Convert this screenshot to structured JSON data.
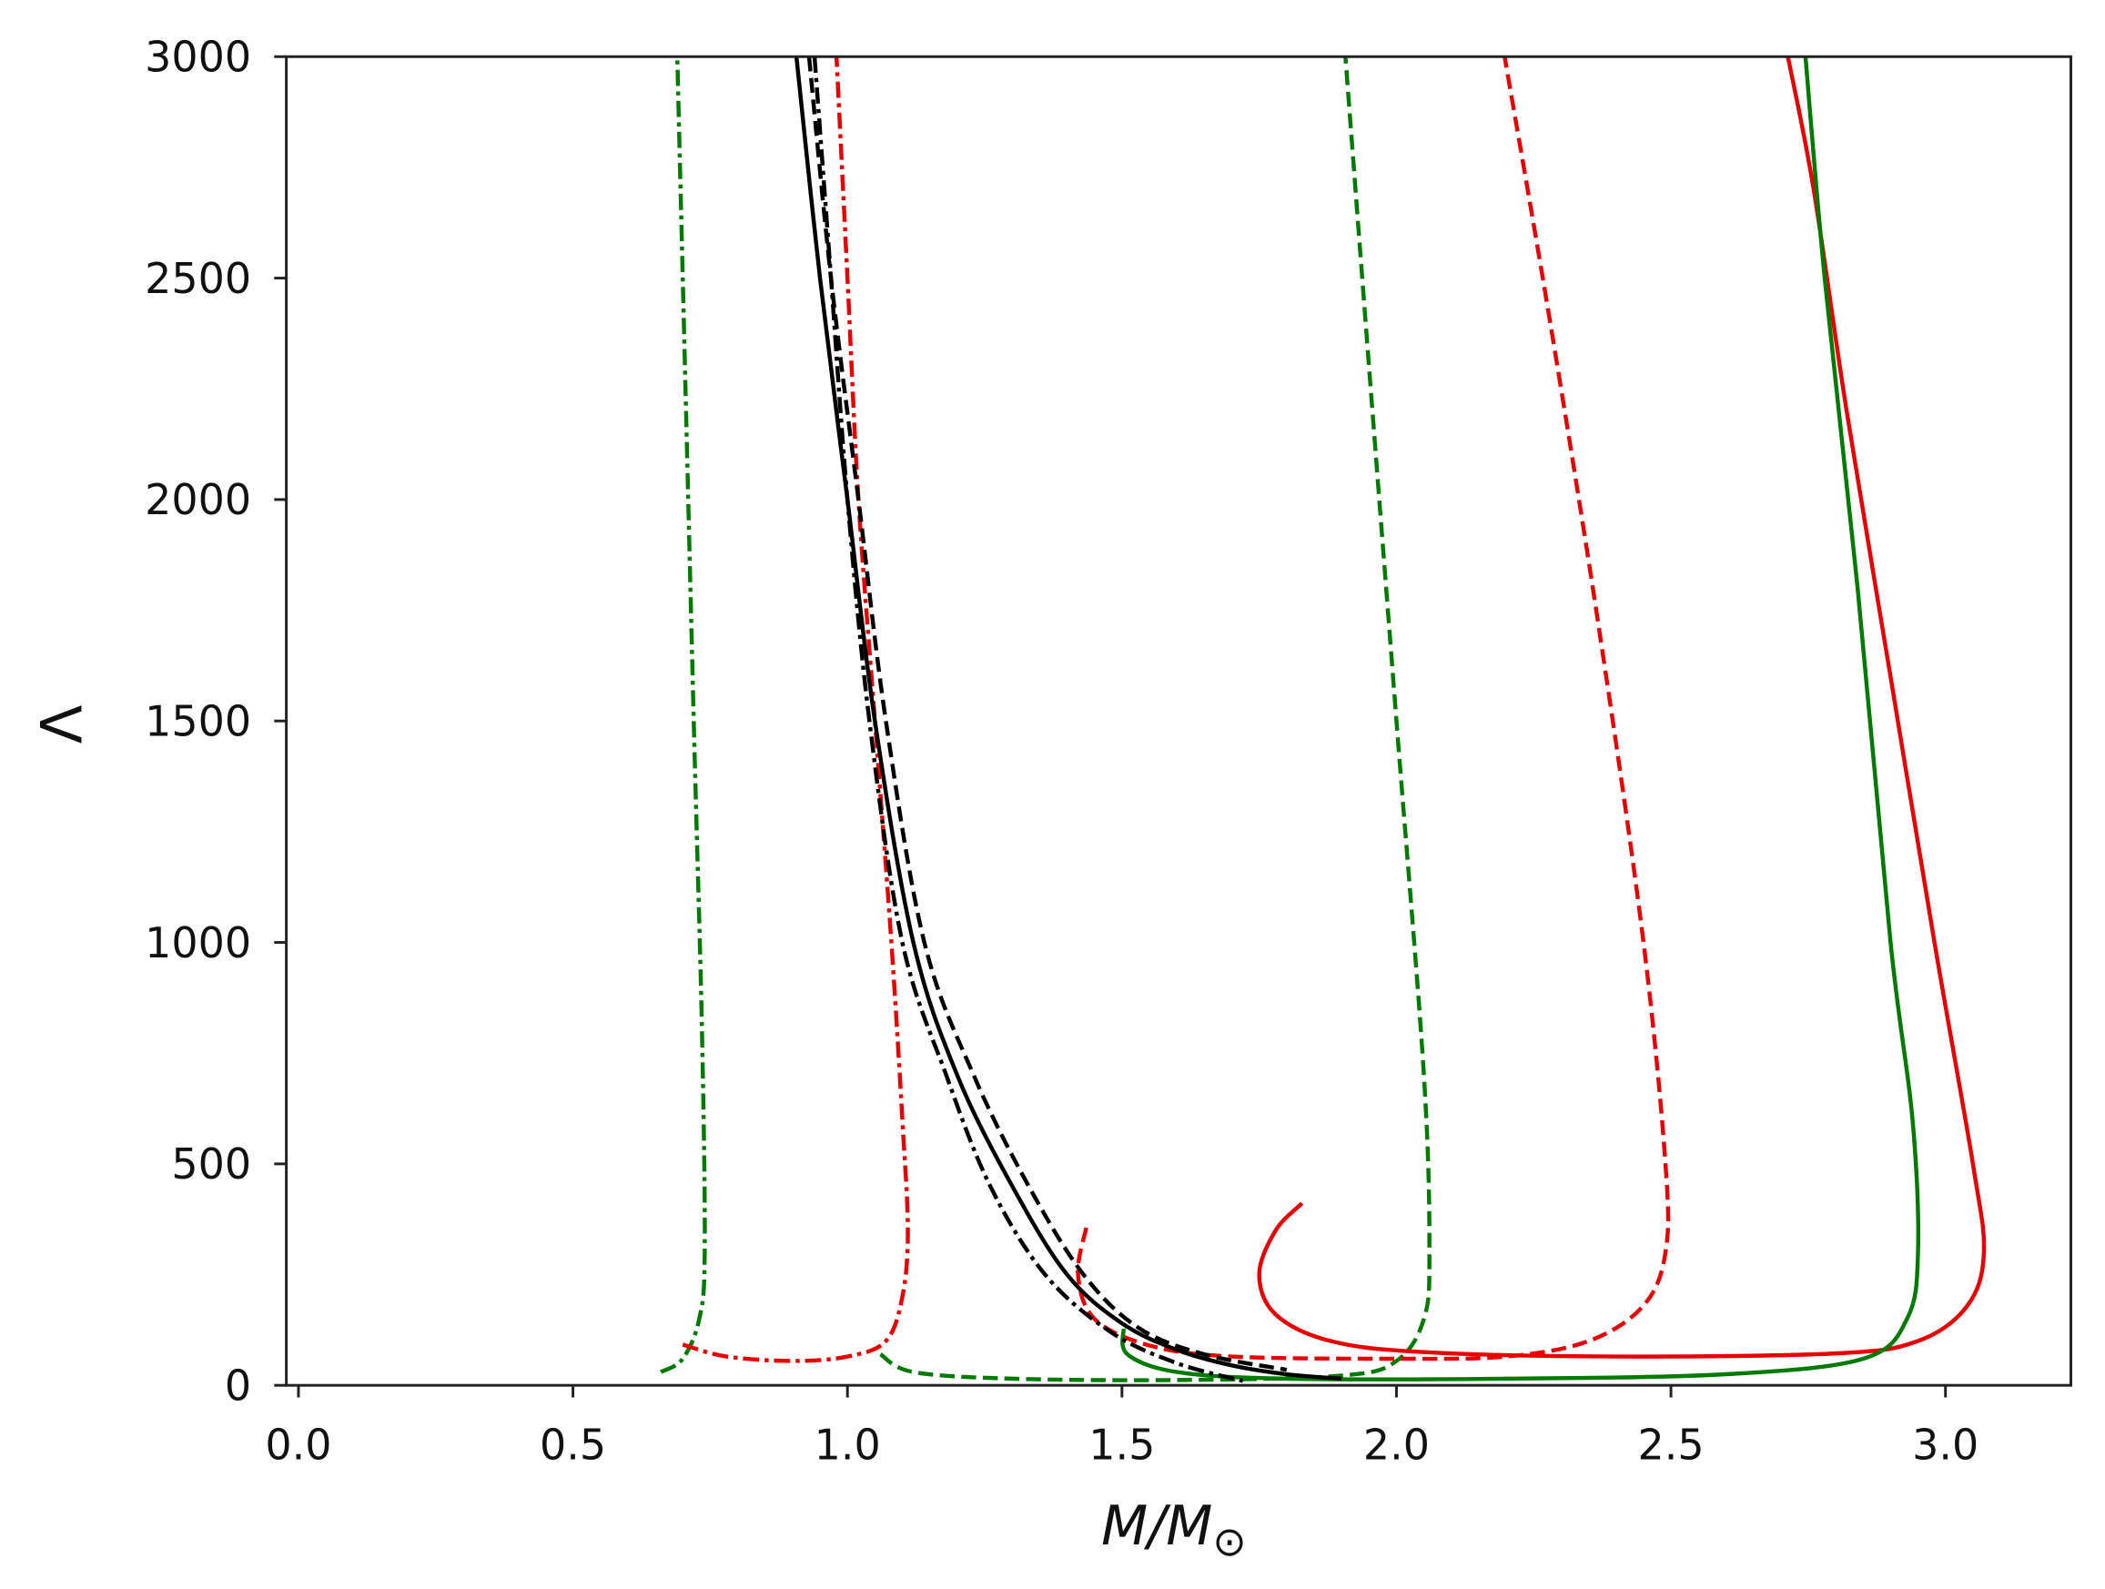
{
  "chart_data": {
    "type": "line",
    "title": "",
    "xlabel": "M/M",
    "xlabel_subscript": "⊙",
    "ylabel": "Λ",
    "xlim": [
      -0.02,
      3.23
    ],
    "ylim": [
      0,
      3000
    ],
    "xticks": [
      "0.0",
      "0.5",
      "1.0",
      "1.5",
      "2.0",
      "2.5",
      "3.0"
    ],
    "xtick_values": [
      0,
      0.5,
      1.0,
      1.5,
      2.0,
      2.5,
      3.0
    ],
    "yticks": [
      "0",
      "500",
      "1000",
      "1500",
      "2000",
      "2500",
      "3000"
    ],
    "ytick_values": [
      0,
      500,
      1000,
      1500,
      2000,
      2500,
      3000
    ],
    "grid": false,
    "colors": {
      "green": "#007a00",
      "red": "#e80000",
      "black": "#000000"
    },
    "series": [
      {
        "color": "green",
        "style": "dashdot",
        "points": [
          [
            0.66,
            30
          ],
          [
            0.7,
            60
          ],
          [
            0.73,
            150
          ],
          [
            0.74,
            300
          ],
          [
            0.735,
            800
          ],
          [
            0.72,
            1500
          ],
          [
            0.7,
            2500
          ],
          [
            0.69,
            3000
          ]
        ]
      },
      {
        "color": "red",
        "style": "dashdot",
        "points": [
          [
            0.7,
            92
          ],
          [
            0.78,
            65
          ],
          [
            0.9,
            55
          ],
          [
            1.0,
            65
          ],
          [
            1.07,
            100
          ],
          [
            1.1,
            200
          ],
          [
            1.11,
            350
          ],
          [
            1.1,
            600
          ],
          [
            1.08,
            1000
          ],
          [
            1.05,
            1500
          ],
          [
            1.02,
            2000
          ],
          [
            1.0,
            2500
          ],
          [
            0.98,
            3000
          ]
        ]
      },
      {
        "color": "green",
        "style": "dashed",
        "points": [
          [
            1.06,
            70
          ],
          [
            1.12,
            30
          ],
          [
            1.3,
            15
          ],
          [
            1.6,
            12
          ],
          [
            1.9,
            22
          ],
          [
            2.0,
            55
          ],
          [
            2.05,
            150
          ],
          [
            2.06,
            300
          ],
          [
            2.05,
            700
          ],
          [
            2.0,
            1500
          ],
          [
            1.95,
            2300
          ],
          [
            1.907,
            3000
          ]
        ]
      },
      {
        "color": "red",
        "style": "dashed",
        "points": [
          [
            1.435,
            356
          ],
          [
            1.42,
            250
          ],
          [
            1.45,
            150
          ],
          [
            1.55,
            90
          ],
          [
            1.7,
            65
          ],
          [
            2.0,
            60
          ],
          [
            2.2,
            65
          ],
          [
            2.35,
            100
          ],
          [
            2.45,
            180
          ],
          [
            2.49,
            300
          ],
          [
            2.49,
            500
          ],
          [
            2.45,
            1000
          ],
          [
            2.37,
            1700
          ],
          [
            2.28,
            2400
          ],
          [
            2.197,
            3000
          ]
        ]
      },
      {
        "color": "red",
        "style": "solid",
        "points": [
          [
            1.828,
            411
          ],
          [
            1.78,
            350
          ],
          [
            1.75,
            250
          ],
          [
            1.78,
            160
          ],
          [
            1.88,
            100
          ],
          [
            2.05,
            75
          ],
          [
            2.4,
            65
          ],
          [
            2.8,
            72
          ],
          [
            2.95,
            100
          ],
          [
            3.04,
            180
          ],
          [
            3.07,
            300
          ],
          [
            3.05,
            500
          ],
          [
            2.98,
            1000
          ],
          [
            2.9,
            1600
          ],
          [
            2.82,
            2200
          ],
          [
            2.76,
            2700
          ],
          [
            2.713,
            3000
          ]
        ]
      },
      {
        "color": "green",
        "style": "solid",
        "points": [
          [
            1.503,
            128
          ],
          [
            1.51,
            70
          ],
          [
            1.6,
            30
          ],
          [
            1.8,
            15
          ],
          [
            2.2,
            15
          ],
          [
            2.6,
            25
          ],
          [
            2.85,
            60
          ],
          [
            2.93,
            150
          ],
          [
            2.95,
            300
          ],
          [
            2.94,
            600
          ],
          [
            2.9,
            1000
          ],
          [
            2.84,
            1800
          ],
          [
            2.78,
            2500
          ],
          [
            2.745,
            3000
          ]
        ]
      },
      {
        "color": "black",
        "style": "solid",
        "points": [
          [
            0.907,
            3000
          ],
          [
            0.95,
            2500
          ],
          [
            1.0,
            2000
          ],
          [
            1.05,
            1500
          ],
          [
            1.12,
            1000
          ],
          [
            1.2,
            700
          ],
          [
            1.3,
            450
          ],
          [
            1.4,
            250
          ],
          [
            1.5,
            140
          ],
          [
            1.6,
            80
          ],
          [
            1.7,
            45
          ],
          [
            1.8,
            25
          ],
          [
            1.9,
            15
          ]
        ]
      },
      {
        "color": "black",
        "style": "dashed",
        "points": [
          [
            0.93,
            3000
          ],
          [
            0.97,
            2500
          ],
          [
            1.02,
            2000
          ],
          [
            1.07,
            1500
          ],
          [
            1.14,
            1000
          ],
          [
            1.23,
            700
          ],
          [
            1.33,
            450
          ],
          [
            1.43,
            250
          ],
          [
            1.53,
            130
          ],
          [
            1.65,
            70
          ],
          [
            1.8,
            35
          ]
        ]
      },
      {
        "color": "black",
        "style": "dashdot",
        "points": [
          [
            0.94,
            3000
          ],
          [
            0.97,
            2500
          ],
          [
            1.0,
            2000
          ],
          [
            1.04,
            1500
          ],
          [
            1.1,
            1000
          ],
          [
            1.18,
            700
          ],
          [
            1.26,
            450
          ],
          [
            1.36,
            250
          ],
          [
            1.48,
            120
          ],
          [
            1.6,
            50
          ],
          [
            1.72,
            10
          ]
        ]
      }
    ]
  }
}
